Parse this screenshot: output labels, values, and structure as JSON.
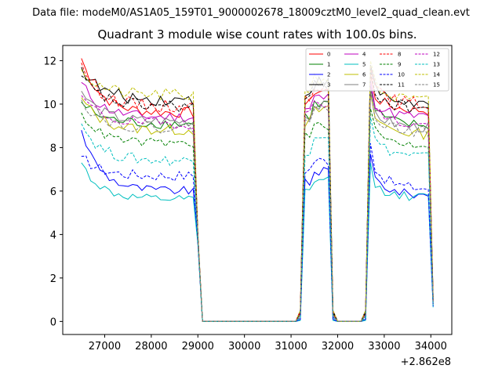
{
  "figure": {
    "suptitle": "Data file: modeM0/AS1A05_159T01_9000002678_18009cztM0_level2_quad_clean.evt"
  },
  "chart_data": {
    "type": "line",
    "title": "Quadrant 3 module wise count rates with 100.0s bins.",
    "xlabel": "",
    "ylabel": "",
    "x_offset_label": "+2.862e8",
    "xlim": [
      26100,
      34450
    ],
    "ylim": [
      -0.6,
      12.7
    ],
    "x_ticks": [
      27000,
      28000,
      29000,
      30000,
      31000,
      32000,
      33000,
      34000
    ],
    "x_tick_labels": [
      "27000",
      "28000",
      "29000",
      "30000",
      "31000",
      "32000",
      "33000",
      "34000"
    ],
    "y_ticks": [
      0,
      2,
      4,
      6,
      8,
      10,
      12
    ],
    "y_tick_labels": [
      "0",
      "2",
      "4",
      "6",
      "8",
      "10",
      "12"
    ],
    "legend": {
      "location": "upper right",
      "columns": 4
    },
    "segments": [
      {
        "start": 26500,
        "end": 29000,
        "points": 26
      },
      {
        "start": 29100,
        "end": 31100,
        "points": 21,
        "zero": true
      },
      {
        "start": 31200,
        "end": 31900,
        "points": 8
      },
      {
        "start": 32000,
        "end": 32500,
        "points": 6,
        "zero": true
      },
      {
        "start": 32600,
        "end": 34050,
        "points": 15
      }
    ],
    "series": [
      {
        "name": "0",
        "color": "#ff0000",
        "dash": "solid",
        "start": 12.1,
        "level": 9.6,
        "mid": 10.6,
        "end": 9.7,
        "drop": 0.4,
        "noise": 0.25
      },
      {
        "name": "1",
        "color": "#008000",
        "dash": "solid",
        "start": 10.1,
        "level": 9.1,
        "mid": 10.0,
        "end": 9.0,
        "drop": 0.3,
        "noise": 0.25
      },
      {
        "name": "2",
        "color": "#0000ff",
        "dash": "solid",
        "start": 8.8,
        "level": 6.0,
        "mid": 6.9,
        "end": 5.8,
        "drop": 0.1,
        "noise": 0.2
      },
      {
        "name": "3",
        "color": "#000000",
        "dash": "solid",
        "start": 11.7,
        "level": 10.2,
        "mid": 11.0,
        "end": 10.0,
        "drop": 0.5,
        "noise": 0.3
      },
      {
        "name": "4",
        "color": "#bf00bf",
        "dash": "solid",
        "start": 11.0,
        "level": 9.4,
        "mid": 10.3,
        "end": 9.4,
        "drop": 0.3,
        "noise": 0.25
      },
      {
        "name": "5",
        "color": "#00bfbf",
        "dash": "solid",
        "start": 7.3,
        "level": 5.6,
        "mid": 6.5,
        "end": 5.7,
        "drop": 0.05,
        "noise": 0.2
      },
      {
        "name": "6",
        "color": "#bfbf00",
        "dash": "solid",
        "start": 10.3,
        "level": 8.8,
        "mid": 9.7,
        "end": 8.6,
        "drop": 0.3,
        "noise": 0.25
      },
      {
        "name": "7",
        "color": "#808080",
        "dash": "solid",
        "start": 10.6,
        "level": 9.2,
        "mid": 9.9,
        "end": 8.9,
        "drop": 0.3,
        "noise": 0.25
      },
      {
        "name": "8",
        "color": "#ff0000",
        "dash": "dashed",
        "start": 11.9,
        "level": 9.9,
        "mid": 10.9,
        "end": 10.0,
        "drop": 0.5,
        "noise": 0.3
      },
      {
        "name": "9",
        "color": "#008000",
        "dash": "dashed",
        "start": 9.6,
        "level": 8.2,
        "mid": 9.0,
        "end": 8.1,
        "drop": 0.2,
        "noise": 0.2
      },
      {
        "name": "10",
        "color": "#0000ff",
        "dash": "dashed",
        "start": 7.6,
        "level": 6.7,
        "mid": 7.4,
        "end": 6.1,
        "drop": 0.1,
        "noise": 0.25
      },
      {
        "name": "11",
        "color": "#000000",
        "dash": "dashed",
        "start": 11.3,
        "level": 9.9,
        "mid": 10.8,
        "end": 9.8,
        "drop": 0.4,
        "noise": 0.3
      },
      {
        "name": "12",
        "color": "#bf00bf",
        "dash": "dashed",
        "start": 10.4,
        "level": 9.1,
        "mid": 10.1,
        "end": 9.0,
        "drop": 0.3,
        "noise": 0.25
      },
      {
        "name": "13",
        "color": "#00bfbf",
        "dash": "dashed",
        "start": 9.1,
        "level": 7.4,
        "mid": 8.6,
        "end": 7.6,
        "drop": 0.2,
        "noise": 0.25
      },
      {
        "name": "14",
        "color": "#bfbf00",
        "dash": "dashed",
        "start": 11.6,
        "level": 10.4,
        "mid": 11.2,
        "end": 10.1,
        "drop": 0.5,
        "noise": 0.3
      },
      {
        "name": "15",
        "color": "#808080",
        "dash": "dashed",
        "start": 10.2,
        "level": 8.9,
        "mid": 9.8,
        "end": 8.7,
        "drop": 0.3,
        "noise": 0.25
      }
    ]
  }
}
